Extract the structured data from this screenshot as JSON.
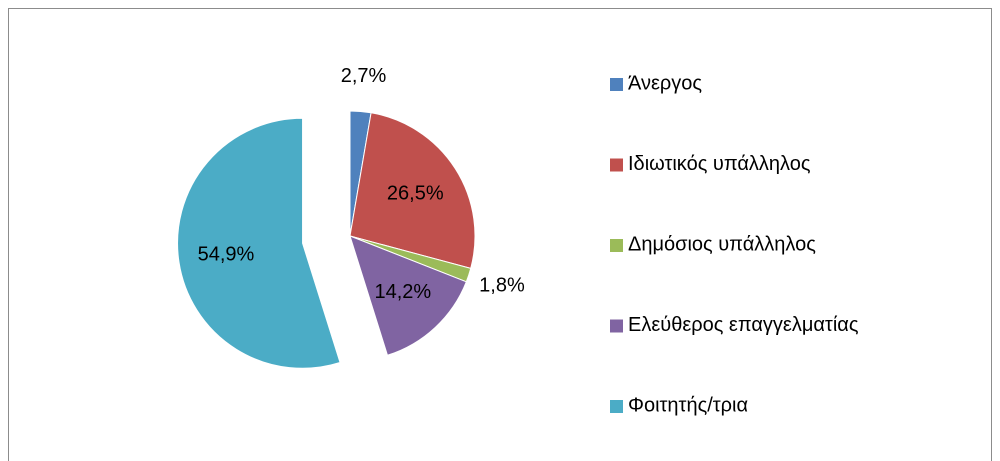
{
  "chart_data": {
    "type": "pie",
    "categories": [
      "Άνεργος",
      "Ιδιωτικός υπάλληλος",
      "Δημόσιος υπάλληλος",
      "Ελεύθερος επαγγελματίας",
      "Φοιτητής/τρια"
    ],
    "values": [
      2.7,
      26.5,
      1.8,
      14.2,
      54.9
    ],
    "value_labels": [
      "2,7%",
      "26,5%",
      "1,8%",
      "14,2%",
      "54,9%"
    ],
    "colors": [
      "#4f81bd",
      "#c0504d",
      "#9bbb59",
      "#8064a2",
      "#4bacc6"
    ],
    "exploded": [
      false,
      false,
      false,
      false,
      true
    ],
    "legend": "right"
  }
}
